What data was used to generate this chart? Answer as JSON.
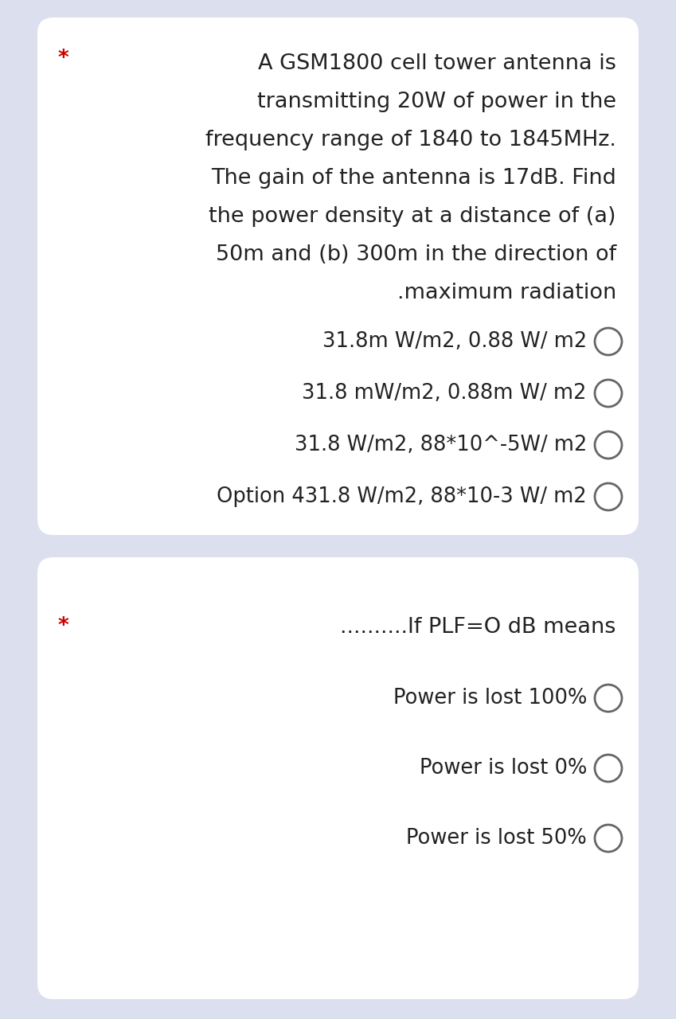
{
  "bg_color": "#dce0ee",
  "card_color": "#ffffff",
  "card1": {
    "star": "*",
    "star_color": "#cc0000",
    "question_lines": [
      "A GSM1800 cell tower antenna is",
      "transmitting 20W of power in the",
      "frequency range of 1840 to 1845MHz.",
      "The gain of the antenna is 17dB. Find",
      "the power density at a distance of (a)",
      "50m and (b) 300m in the direction of",
      ".maximum radiation"
    ],
    "options": [
      "31.8m W/m2, 0.88 W/ m2",
      "31.8 mW/m2, 0.88m W/ m2",
      "31.8 W/m2, 88*10^-5W/ m2",
      "Option 431.8 W/m2, 88*10-3 W/ m2"
    ]
  },
  "card2": {
    "star": "*",
    "star_color": "#cc0000",
    "question": "..........If PLF=O dB means",
    "options": [
      "Power is lost 100%",
      "Power is lost 0%",
      "Power is lost 50%"
    ]
  },
  "text_color": "#222222",
  "circle_color": "#666666",
  "font_size_question": 19.5,
  "font_size_option": 18.5,
  "font_size_star": 19
}
